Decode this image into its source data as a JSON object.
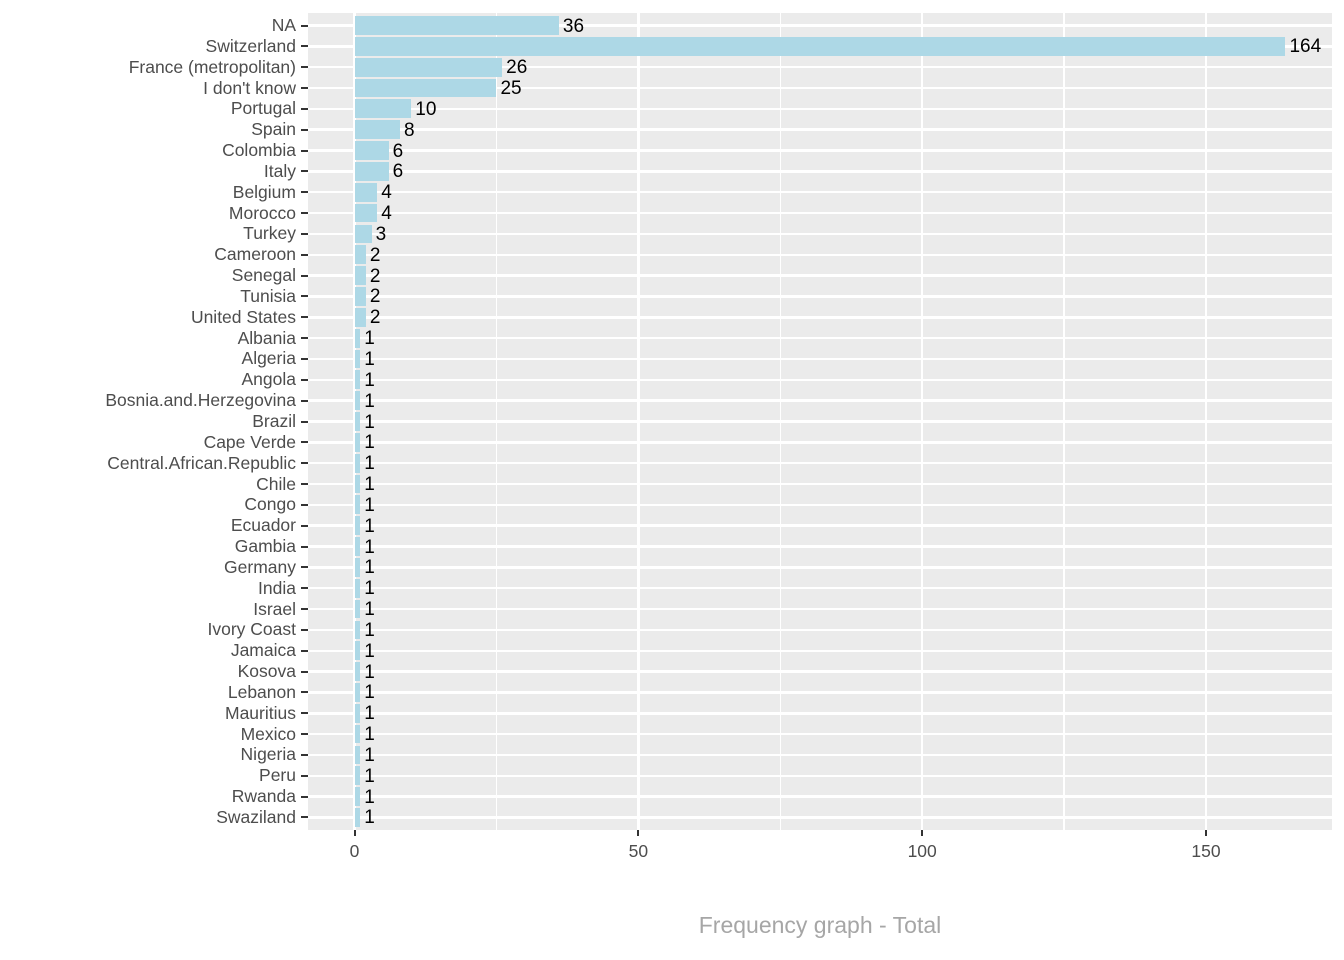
{
  "chart_data": {
    "type": "bar",
    "orientation": "horizontal",
    "title": "Frequency graph - Total",
    "xlabel": "",
    "ylabel": "",
    "categories": [
      "NA",
      "Switzerland",
      "France (metropolitan)",
      "I don't know",
      "Portugal",
      "Spain",
      "Colombia",
      "Italy",
      "Belgium",
      "Morocco",
      "Turkey",
      "Cameroon",
      "Senegal",
      "Tunisia",
      "United States",
      "Albania",
      "Algeria",
      "Angola",
      "Bosnia.and.Herzegovina",
      "Brazil",
      "Cape Verde",
      "Central.African.Republic",
      "Chile",
      "Congo",
      "Ecuador",
      "Gambia",
      "Germany",
      "India",
      "Israel",
      "Ivory Coast",
      "Jamaica",
      "Kosova",
      "Lebanon",
      "Mauritius",
      "Mexico",
      "Nigeria",
      "Peru",
      "Rwanda",
      "Swaziland"
    ],
    "values": [
      36,
      164,
      26,
      25,
      10,
      8,
      6,
      6,
      4,
      4,
      3,
      2,
      2,
      2,
      2,
      1,
      1,
      1,
      1,
      1,
      1,
      1,
      1,
      1,
      1,
      1,
      1,
      1,
      1,
      1,
      1,
      1,
      1,
      1,
      1,
      1,
      1,
      1,
      1
    ],
    "x_major_ticks": [
      0,
      50,
      100,
      150
    ],
    "x_minor_ticks": [
      25,
      75,
      125
    ],
    "xlim": [
      -8.2,
      172.2
    ],
    "grid": true,
    "legend": false,
    "colors": {
      "bar_fill": "#ADD8E6",
      "panel_bg": "#EBEBEB",
      "grid": "#FFFFFF",
      "axis_text": "#4D4D4D",
      "tick_mark": "#333333",
      "value_label": "#000000",
      "title": "#A6A6A6"
    }
  }
}
